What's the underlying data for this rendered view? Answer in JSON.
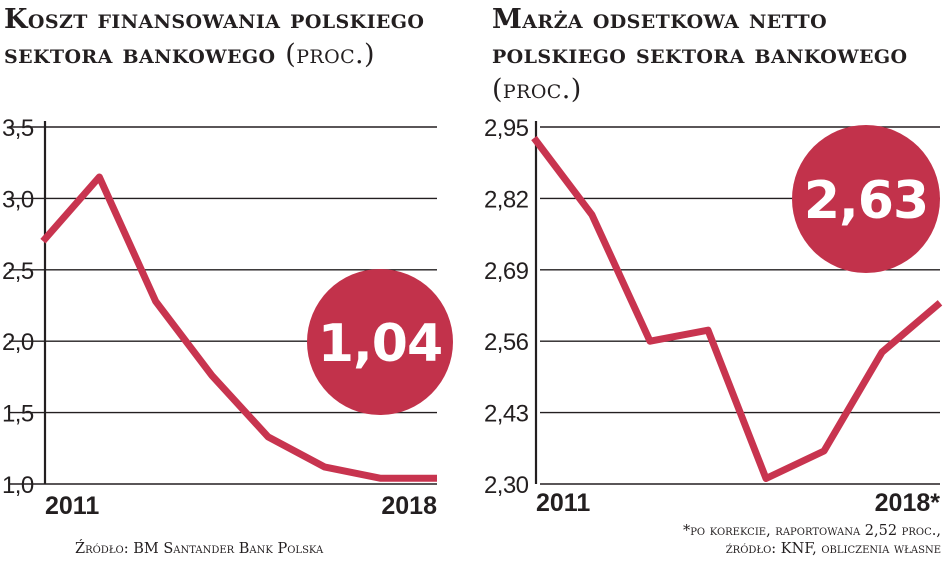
{
  "left": {
    "title": "Koszt finansowania polskiego sektora bankowego",
    "unit": "(proc.)",
    "badge": "1,04",
    "source": "Źródło: BM Santander Bank Polska"
  },
  "right": {
    "title": "Marża odsetkowa netto polskiego sektora bankowego",
    "unit": "(proc.)",
    "badge": "2,63",
    "footnote": "*po korekcie, raportowana 2,52 proc.,",
    "source": "źródło: KNF, obliczenia własne"
  },
  "colors": {
    "line": "#c8344f",
    "badge": "#c2324b",
    "grid": "#231f20",
    "text": "#231f20"
  },
  "chart_data": [
    {
      "type": "line",
      "title": "Koszt finansowania polskiego sektora bankowego (proc.)",
      "x": [
        "2011",
        "2012",
        "2013",
        "2014",
        "2015",
        "2016",
        "2017",
        "2018"
      ],
      "x_tick_labels": [
        "2011",
        "",
        "",
        "",
        "",
        "",
        "",
        "2018"
      ],
      "series": [
        {
          "values": [
            2.7,
            3.15,
            2.28,
            1.76,
            1.33,
            1.12,
            1.04,
            1.04
          ]
        }
      ],
      "y_ticks": [
        "3,5",
        "3,0",
        "2,5",
        "2,0",
        "1,5",
        "1,0"
      ],
      "ylim": [
        1.0,
        3.5
      ],
      "grid": true
    },
    {
      "type": "line",
      "title": "Marża odsetkowa netto polskiego sektora bankowego (proc.)",
      "x": [
        "2011",
        "2012",
        "2013",
        "2014",
        "2015",
        "2016",
        "2017",
        "2018*"
      ],
      "x_tick_labels": [
        "2011",
        "",
        "",
        "",
        "",
        "",
        "",
        "2018*"
      ],
      "series": [
        {
          "values": [
            2.93,
            2.79,
            2.56,
            2.58,
            2.31,
            2.36,
            2.54,
            2.63
          ]
        }
      ],
      "y_ticks": [
        "2,95",
        "2,82",
        "2,69",
        "2,56",
        "2,43",
        "2,30"
      ],
      "ylim": [
        2.3,
        2.95
      ],
      "grid": true
    }
  ]
}
